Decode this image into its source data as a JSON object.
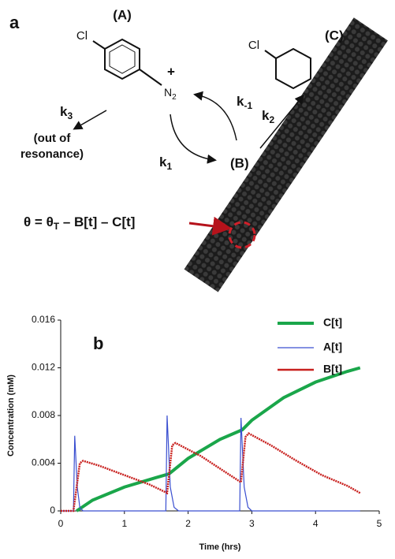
{
  "panel_a": {
    "label": "a",
    "species_a": "(A)",
    "cl_a": "Cl",
    "plus": "+",
    "n2": {
      "main": "N",
      "sub": "2"
    },
    "k3": {
      "main": "k",
      "sub": "3"
    },
    "out_of_resonance": [
      "(out of",
      "resonance)"
    ],
    "k_minus1": {
      "main": "k",
      "sub": "-1"
    },
    "k1": {
      "main": "k",
      "sub": "1"
    },
    "species_b": "(B)",
    "k2": {
      "main": "k",
      "sub": "2"
    },
    "species_c": "(C)",
    "cl_c": "Cl",
    "theta": {
      "lhs": "θ = θ",
      "sub": "T",
      "rhs": " – B[t] – C[t]"
    }
  },
  "chart_data": {
    "type": "line",
    "panel_label": "b",
    "x_label": "Time (hrs)",
    "y_label": "Concentration (mM)",
    "xlim": [
      0,
      5
    ],
    "xticks": [
      0,
      1,
      2,
      3,
      4,
      5
    ],
    "ylim": [
      0,
      0.016
    ],
    "yticks": [
      0,
      0.004,
      0.008,
      0.012,
      0.016
    ],
    "series": [
      {
        "name": "C[t]",
        "color": "#1aa64a",
        "x": [
          0.25,
          0.5,
          1.0,
          1.5,
          1.7,
          2.0,
          2.5,
          2.85,
          3.0,
          3.5,
          4.0,
          4.5,
          4.7
        ],
        "values": [
          0,
          0.0009,
          0.002,
          0.0028,
          0.0031,
          0.0044,
          0.006,
          0.0068,
          0.0076,
          0.0095,
          0.0108,
          0.0117,
          0.012
        ]
      },
      {
        "name": "A[t]",
        "color": "#3a4fd0",
        "x": [
          0,
          0.2,
          0.22,
          0.26,
          0.3,
          0.35,
          1.65,
          1.67,
          1.72,
          1.78,
          1.85,
          2.81,
          2.83,
          2.88,
          2.94,
          3.0,
          4.7
        ],
        "values": [
          0,
          0,
          0.0063,
          0.002,
          0.0003,
          0,
          0,
          0.008,
          0.002,
          0.0003,
          0,
          0,
          0.0078,
          0.002,
          0.0003,
          0,
          0
        ]
      },
      {
        "name": "B[t]",
        "color": "#c8201e",
        "x": [
          0,
          0.2,
          0.3,
          0.35,
          0.6,
          1.0,
          1.4,
          1.67,
          1.75,
          1.8,
          2.2,
          2.6,
          2.83,
          2.9,
          2.95,
          3.3,
          3.7,
          4.1,
          4.5,
          4.7
        ],
        "values": [
          0,
          0,
          0.004,
          0.0042,
          0.0038,
          0.003,
          0.0022,
          0.0015,
          0.0055,
          0.0057,
          0.0046,
          0.0032,
          0.0024,
          0.0062,
          0.0065,
          0.0055,
          0.0042,
          0.003,
          0.0021,
          0.0015
        ]
      }
    ]
  }
}
